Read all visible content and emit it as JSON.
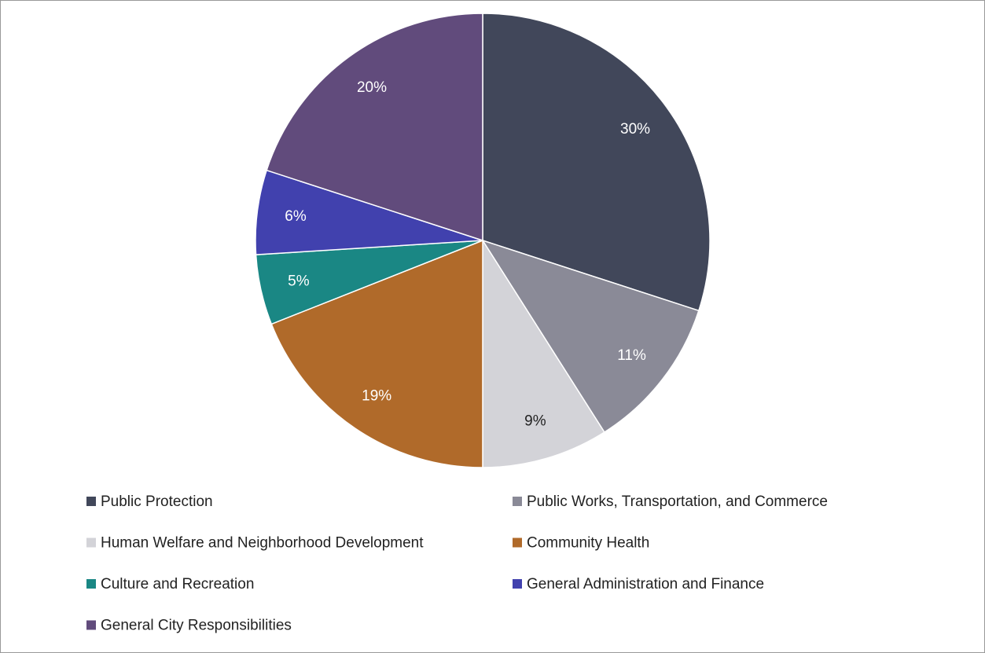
{
  "chart_data": {
    "type": "pie",
    "categories": [
      "Public Protection",
      "Public Works, Transportation, and Commerce",
      "Human Welfare and Neighborhood Development",
      "Community Health",
      "Culture and Recreation",
      "General Administration and Finance",
      "General City Responsibilities"
    ],
    "values": [
      30,
      11,
      9,
      19,
      5,
      6,
      20
    ],
    "value_labels": [
      "30%",
      "11%",
      "9%",
      "19%",
      "5%",
      "6%",
      "20%"
    ],
    "colors": [
      "#41475a",
      "#8a8a97",
      "#d3d3d8",
      "#b06a2a",
      "#1a8784",
      "#4141ae",
      "#614b7c"
    ],
    "legend": "bottom"
  }
}
